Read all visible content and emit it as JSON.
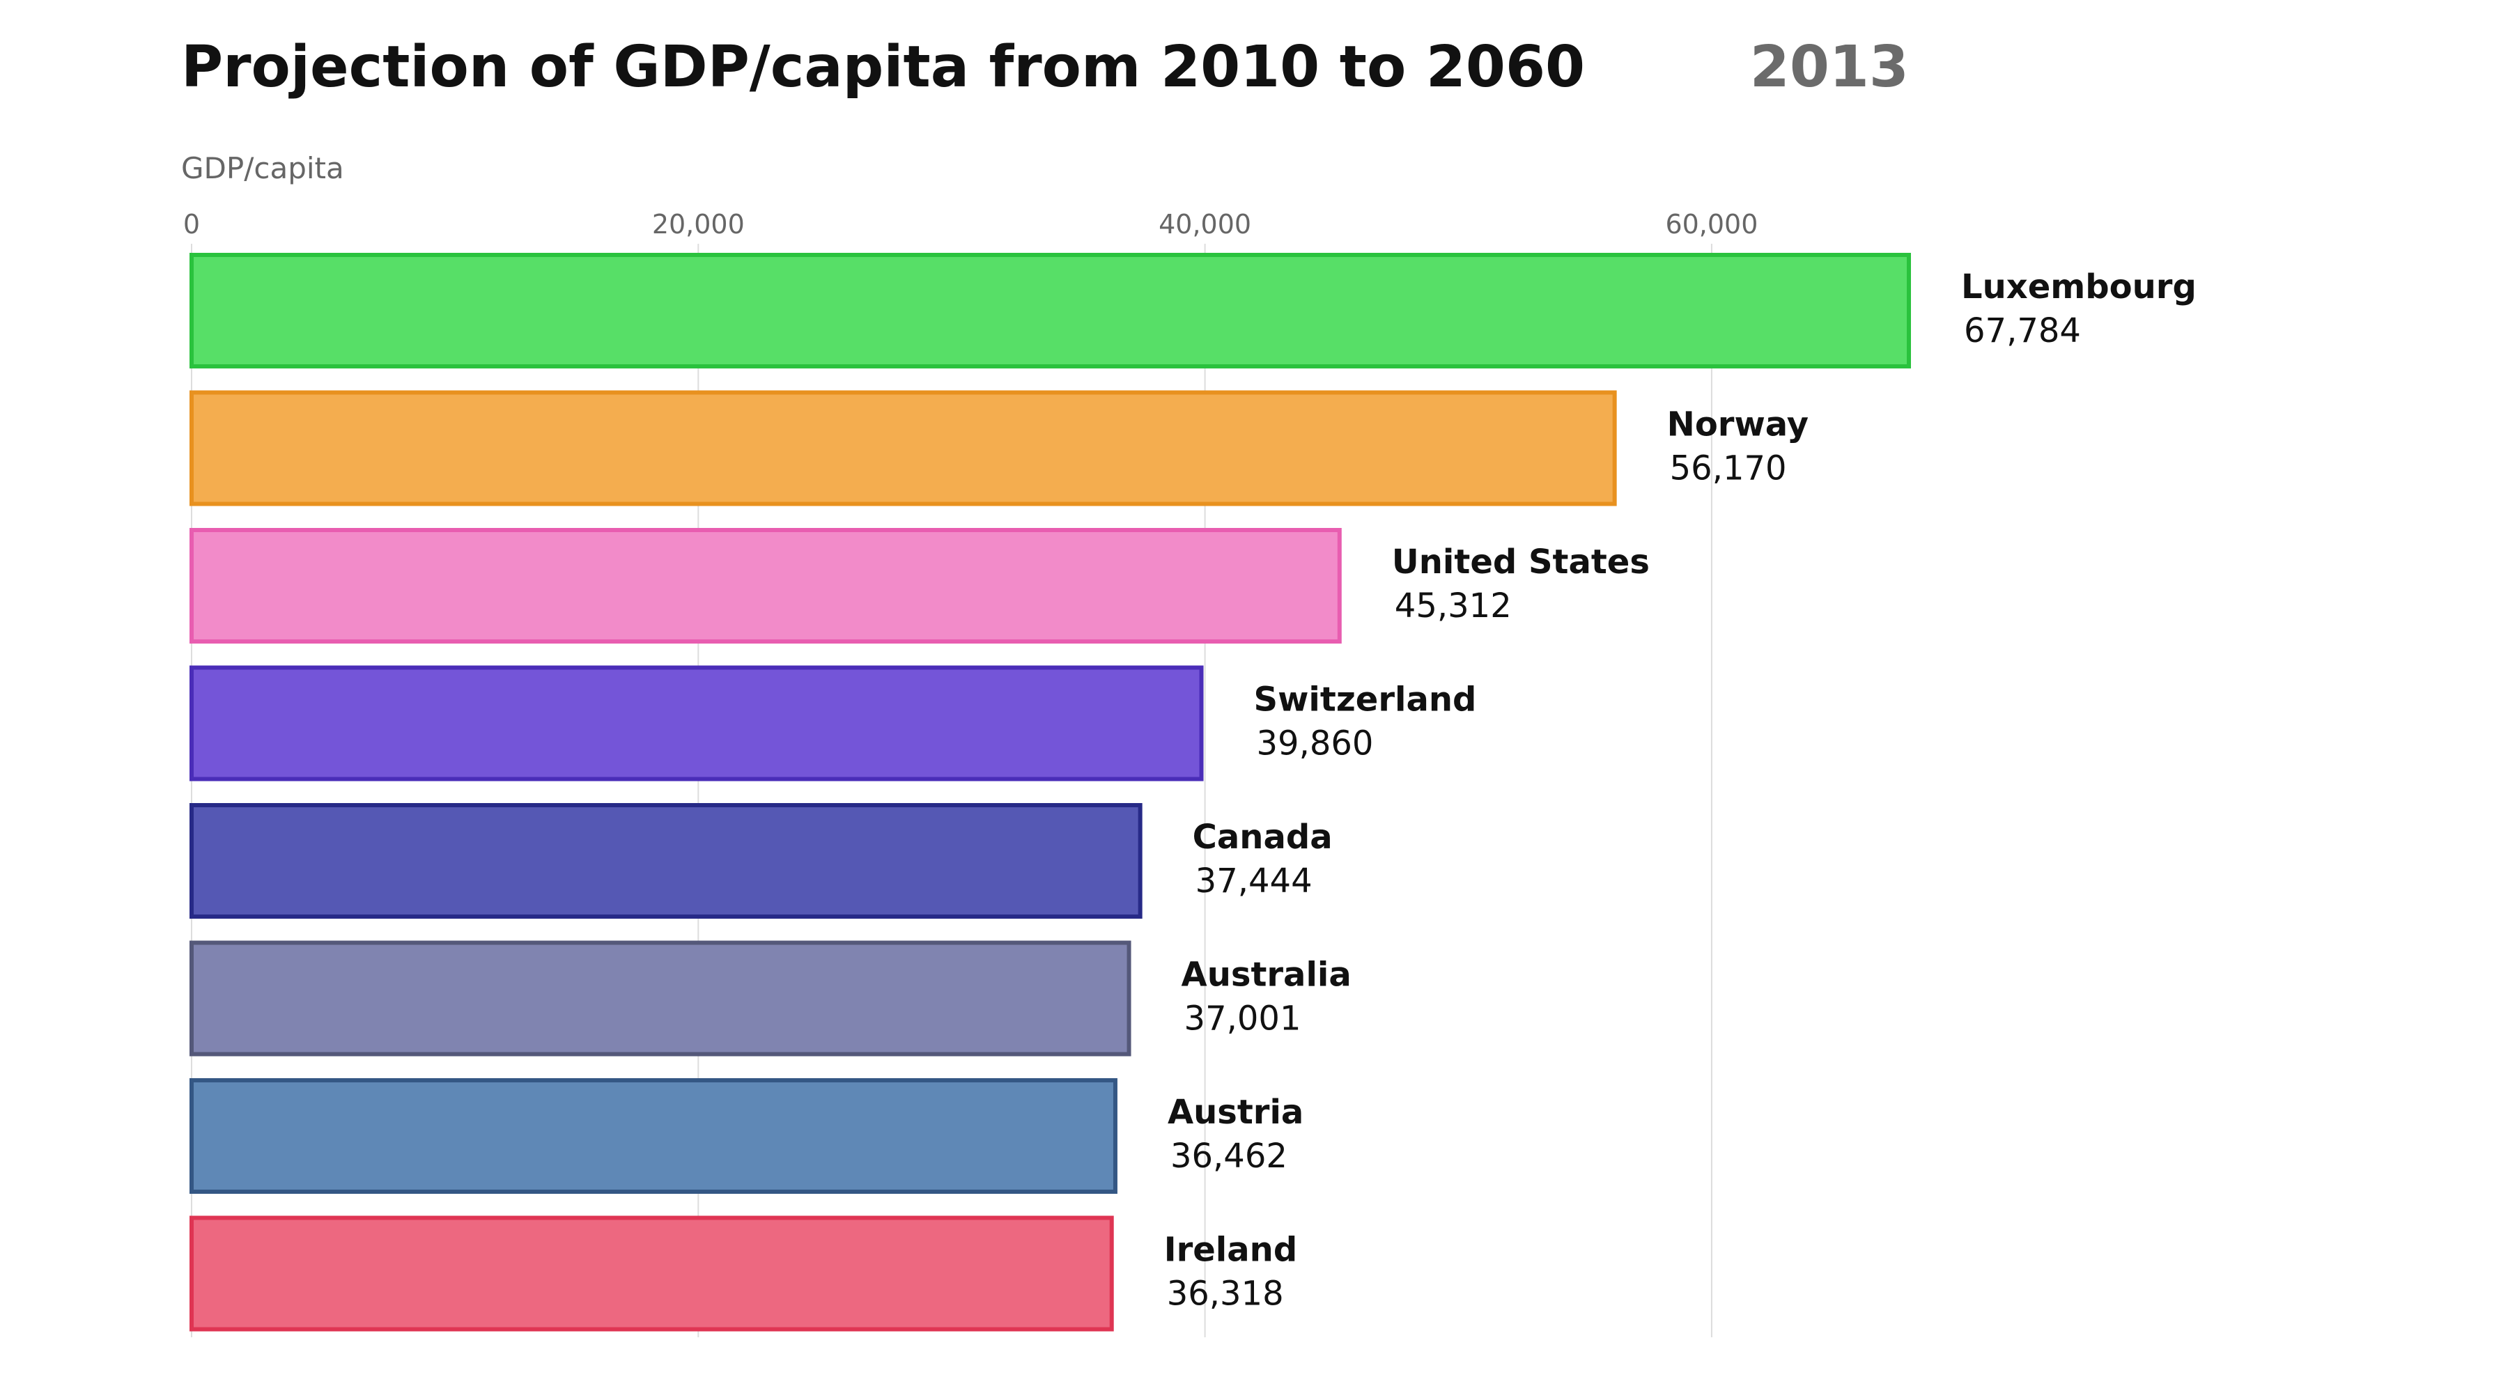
{
  "chart_data": {
    "type": "bar",
    "orientation": "horizontal",
    "title": "Projection of GDP/capita from 2010 to 2060",
    "subtitle": "2013",
    "xlabel": "GDP/capita",
    "ylabel": "",
    "xlim": [
      0,
      67784
    ],
    "xticks": [
      0,
      20000,
      40000,
      60000
    ],
    "xtick_labels": [
      "0",
      "20,000",
      "40,000",
      "60,000"
    ],
    "grid": true,
    "legend": "none",
    "categories": [
      "Luxembourg",
      "Norway",
      "United States",
      "Switzerland",
      "Canada",
      "Australia",
      "Austria",
      "Ireland"
    ],
    "values": [
      67784,
      56170,
      45312,
      39860,
      37444,
      37001,
      36462,
      36318
    ],
    "value_labels": [
      "67,784",
      "56,170",
      "45,312",
      "39,860",
      "37,444",
      "37,001",
      "36,462",
      "36,318"
    ],
    "colors": [
      {
        "fill": "#57df67",
        "stroke": "#2ac23d"
      },
      {
        "fill": "#f4ad4f",
        "stroke": "#e8911f"
      },
      {
        "fill": "#f28bc9",
        "stroke": "#e85db0"
      },
      {
        "fill": "#7455d8",
        "stroke": "#4a2db8"
      },
      {
        "fill": "#5558b4",
        "stroke": "#272a87"
      },
      {
        "fill": "#8084b0",
        "stroke": "#545879"
      },
      {
        "fill": "#5f88b6",
        "stroke": "#345784"
      },
      {
        "fill": "#ed6880",
        "stroke": "#df3553"
      }
    ]
  }
}
